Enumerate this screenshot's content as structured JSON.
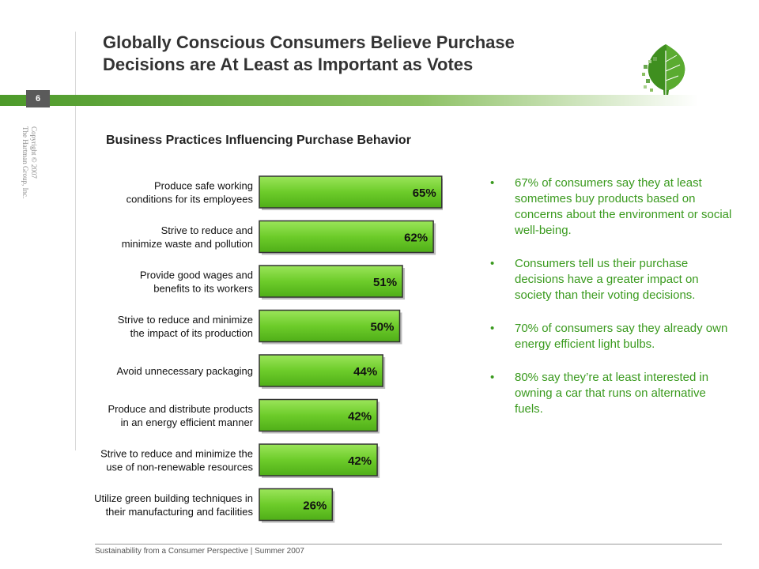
{
  "slide": {
    "title_lines": [
      "Globally Conscious Consumers Believe Purchase",
      "Decisions are At Least as Important as Votes"
    ],
    "page_number": "6",
    "copyright_lines": [
      "Copyright © 2007",
      "The Hartman Group, Inc."
    ],
    "footer": "Sustainability from a Consumer Perspective | Summer 2007"
  },
  "chart_data": {
    "type": "bar",
    "orientation": "horizontal",
    "title": "Business Practices Influencing Purchase Behavior",
    "categories": [
      [
        "Produce safe working",
        "conditions for its employees"
      ],
      [
        "Strive to reduce and",
        "minimize waste and pollution"
      ],
      [
        "Provide good wages and",
        "benefits to its workers"
      ],
      [
        "Strive to reduce and minimize",
        "the impact of its production"
      ],
      [
        "Avoid unnecessary packaging"
      ],
      [
        "Produce and distribute products",
        "in an energy efficient manner"
      ],
      [
        "Strive to reduce and minimize the",
        "use of non-renewable resources"
      ],
      [
        "Utilize green building techniques in",
        "their manufacturing and facilities"
      ]
    ],
    "values": [
      65,
      62,
      51,
      50,
      44,
      42,
      42,
      26
    ],
    "value_labels": [
      "65%",
      "62%",
      "51%",
      "50%",
      "44%",
      "42%",
      "42%",
      "26%"
    ],
    "unit": "%",
    "bar_color": "#6dcc2a",
    "xlim": [
      0,
      100
    ],
    "grid": false,
    "legend": "none"
  },
  "bullets": [
    "67%  of consumers say they at least sometimes buy products based on concerns about the environment or social well-being.",
    "Consumers tell us their purchase decisions have a greater impact on society than their voting decisions.",
    "70% of consumers say they already own energy efficient light bulbs.",
    "80% say they’re at least interested in owning a car that runs on alternative fuels."
  ],
  "colors": {
    "bullet_text": "#3a9a1e",
    "bar_fill": "#6dcc2a",
    "band_start": "#4d9a2a"
  },
  "icons": {
    "logo": "green-leaf-logo-icon"
  }
}
